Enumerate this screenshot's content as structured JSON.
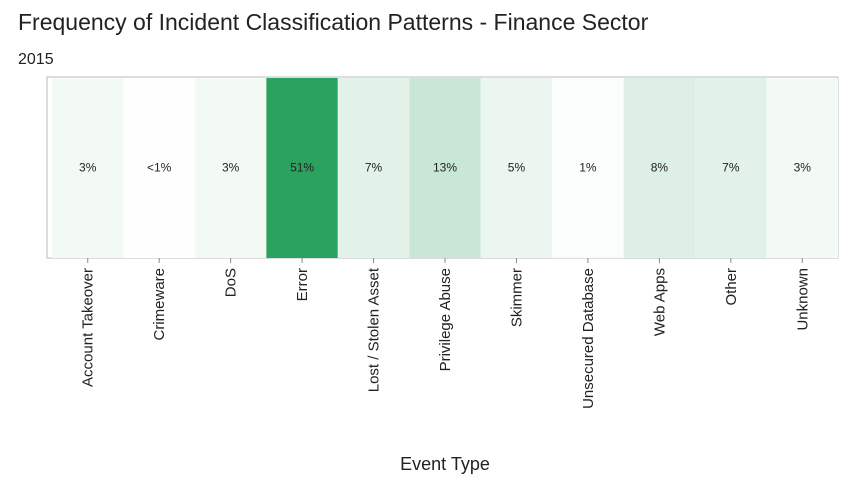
{
  "chart_data": {
    "type": "heatmap",
    "title": "Frequency of Incident Classification Patterns - Finance Sector",
    "subtitle": "2015",
    "x_label": "Event Type",
    "categories": [
      "Account Takeover",
      "Crimeware",
      "DoS",
      "Error",
      "Lost / Stolen Asset",
      "Privilege Abuse",
      "Skimmer",
      "Unsecured Database",
      "Web Apps",
      "Other",
      "Unknown"
    ],
    "values": [
      3,
      0.5,
      3,
      51,
      7,
      13,
      5,
      1,
      8,
      7,
      3
    ],
    "value_labels": [
      "3%",
      "<1%",
      "3%",
      "51%",
      "7%",
      "13%",
      "5%",
      "1%",
      "8%",
      "7%",
      "3%"
    ],
    "color_low": "#ffffff",
    "color_high": "#2ca25f"
  }
}
